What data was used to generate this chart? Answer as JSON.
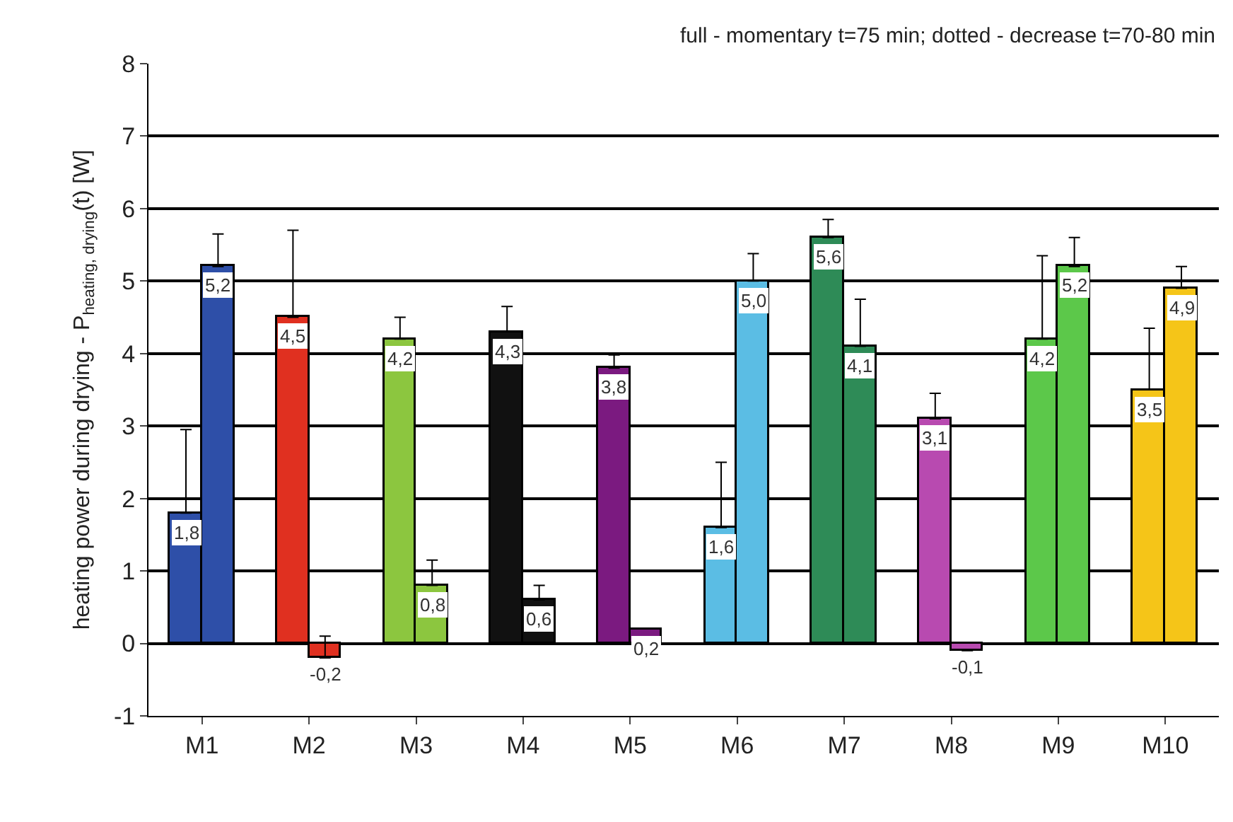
{
  "chart_data": {
    "type": "bar",
    "title": "full - momentary t=75 min; dotted - decrease t=70-80 min",
    "ylabel": "heating power during drying - P$_{heating, drying}$(t) [W]",
    "categories": [
      "M1",
      "M2",
      "M3",
      "M4",
      "M5",
      "M6",
      "M7",
      "M8",
      "M9",
      "M10"
    ],
    "series": [
      {
        "colors": [
          "#2e4fa8",
          "#e03020",
          "#8cc63f",
          "#111111",
          "#7b1a80",
          "#5bbde4",
          "#2e8b57",
          "#b84ab0",
          "#5cc84a",
          "#f5c518"
        ],
        "values": [
          1.8,
          4.5,
          4.2,
          4.3,
          3.8,
          1.6,
          5.6,
          3.1,
          4.2,
          3.5
        ],
        "value_labels": [
          "1,8",
          "4,5",
          "4,2",
          "4,3",
          "3,8",
          "1,6",
          "5,6",
          "3,1",
          "4,2",
          "3,5"
        ],
        "errors": [
          [
            1.8,
            2.95
          ],
          [
            4.5,
            5.7
          ],
          [
            4.2,
            4.5
          ],
          [
            4.3,
            4.65
          ],
          [
            3.8,
            3.98
          ],
          [
            1.6,
            2.5
          ],
          [
            5.6,
            5.85
          ],
          [
            3.1,
            3.45
          ],
          [
            4.2,
            5.35
          ],
          [
            3.5,
            4.35
          ]
        ]
      },
      {
        "colors": [
          "#2e4fa8",
          "#e03020",
          "#8cc63f",
          "#111111",
          "#7b1a80",
          "#5bbde4",
          "#2e8b57",
          "#b84ab0",
          "#5cc84a",
          "#f5c518"
        ],
        "values": [
          5.2,
          -0.2,
          0.8,
          0.6,
          0.2,
          5.0,
          4.1,
          -0.1,
          5.2,
          4.9
        ],
        "value_labels": [
          "5,2",
          "-0,2",
          "0,8",
          "0,6",
          "0,2",
          "5,0",
          "4,1",
          "-0,1",
          "5,2",
          "4,9"
        ],
        "errors": [
          [
            5.2,
            5.65
          ],
          [
            -0.2,
            0.1
          ],
          [
            0.8,
            1.15
          ],
          [
            0.6,
            0.8
          ],
          null,
          [
            5.0,
            5.38
          ],
          [
            4.1,
            4.75
          ],
          null,
          [
            5.2,
            5.6
          ],
          [
            4.9,
            5.2
          ]
        ]
      }
    ],
    "ylim": [
      -1,
      8
    ],
    "yticks": [
      -1,
      0,
      1,
      2,
      3,
      4,
      5,
      6,
      7,
      8
    ],
    "grid": "y"
  }
}
